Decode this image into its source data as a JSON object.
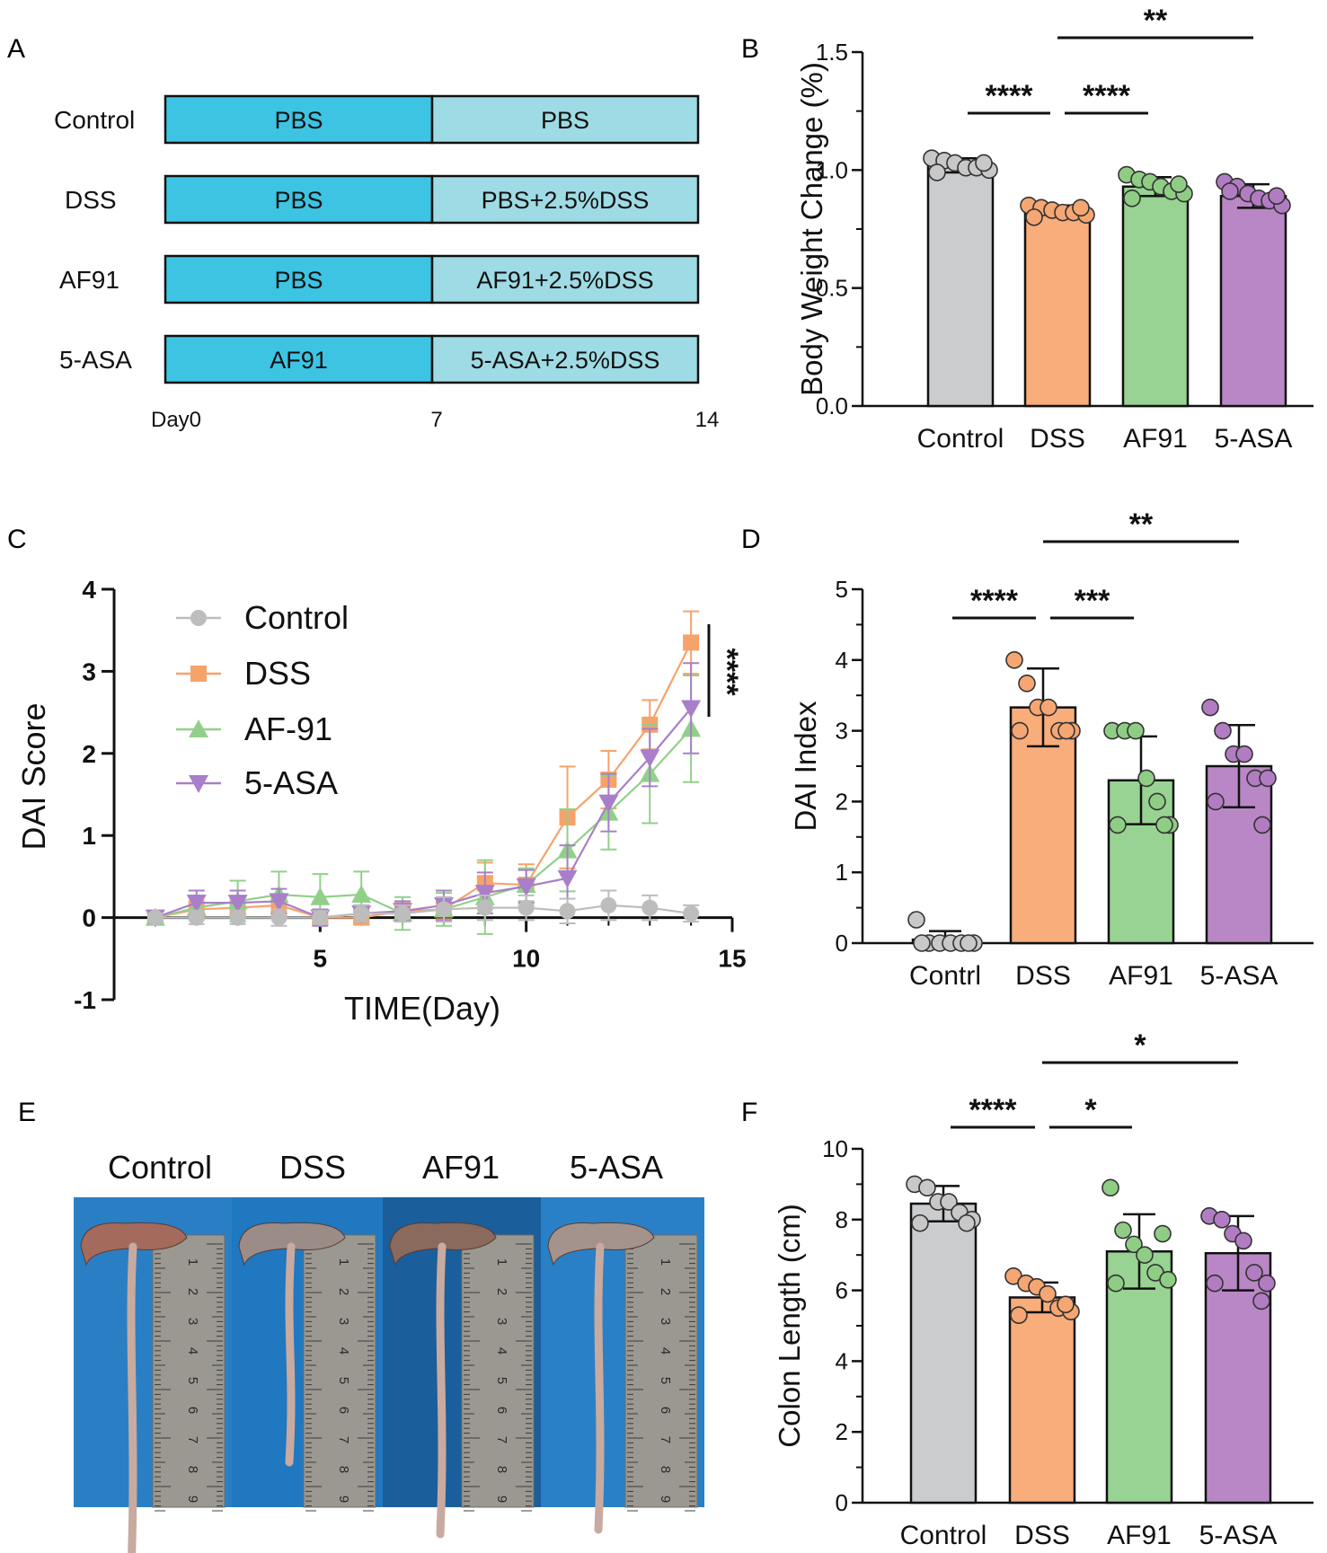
{
  "panel_letters": {
    "a": "A",
    "b": "B",
    "c": "C",
    "d": "D",
    "e": "E",
    "f": "F"
  },
  "colors": {
    "control": "#cbcccd",
    "dss": "#f8ad7b",
    "af91": "#98d393",
    "asa": "#b987c6",
    "dot_control": "#c8c8c8",
    "dot_dss": "#f6a672",
    "dot_af91": "#8fcd85",
    "dot_asa": "#b27cc3",
    "line_control": "#bdbdbd",
    "line_dss": "#f6a36b",
    "line_af91": "#92d08a",
    "line_asa": "#a97fc9",
    "dark_blue": "#3ec4e3",
    "light_blue": "#9edbe4",
    "photo_bg": "#1e6fb8"
  },
  "chart_data": [
    {
      "panel": "A",
      "type": "table",
      "rows": [
        {
          "label": "Control",
          "first": "PBS",
          "second": "PBS"
        },
        {
          "label": "DSS",
          "first": "PBS",
          "second": "PBS+2.5%DSS"
        },
        {
          "label": "AF91",
          "first": "PBS",
          "second": "AF91+2.5%DSS"
        },
        {
          "label": "5-ASA",
          "first": "AF91",
          "second": "5-ASA+2.5%DSS"
        }
      ],
      "timeline": [
        "Day0",
        "7",
        "14"
      ]
    },
    {
      "panel": "B",
      "type": "bar",
      "ylabel": "Body Weight Change (%)",
      "ylim": [
        0,
        1.5
      ],
      "yticks": [
        0.0,
        0.5,
        1.0,
        1.5
      ],
      "ytick_labels": [
        "0.0",
        "0.5",
        "1.0",
        "1.5"
      ],
      "categories": [
        "Control",
        "DSS",
        "AF91",
        "5-ASA"
      ],
      "values": [
        1.02,
        0.83,
        0.93,
        0.89
      ],
      "errors": [
        0.03,
        0.02,
        0.04,
        0.05
      ],
      "points": [
        [
          1.05,
          1.04,
          1.03,
          1.01,
          1.01,
          1.0,
          0.99,
          1.03
        ],
        [
          0.85,
          0.84,
          0.83,
          0.82,
          0.82,
          0.81,
          0.8,
          0.84
        ],
        [
          0.98,
          0.96,
          0.95,
          0.93,
          0.91,
          0.9,
          0.88,
          0.94
        ],
        [
          0.95,
          0.93,
          0.9,
          0.88,
          0.87,
          0.85,
          0.91,
          0.89
        ]
      ],
      "significance": [
        {
          "from": 0,
          "to": 1,
          "label": "****"
        },
        {
          "from": 1,
          "to": 2,
          "label": "****"
        },
        {
          "from": 1,
          "to": 3,
          "label": "**"
        }
      ]
    },
    {
      "panel": "C",
      "type": "line",
      "xlabel": "TIME(Day)",
      "ylabel": "DAI Score",
      "xlim": [
        0,
        15
      ],
      "ylim": [
        -1,
        4
      ],
      "xticks": [
        5,
        10,
        15
      ],
      "xtick_labels": [
        "5",
        "10",
        "15"
      ],
      "yticks": [
        -1,
        0,
        1,
        2,
        3,
        4
      ],
      "ytick_labels": [
        "-1",
        "0",
        "1",
        "2",
        "3",
        "4"
      ],
      "x": [
        1,
        2,
        3,
        4,
        5,
        6,
        7,
        8,
        9,
        10,
        11,
        12,
        13,
        14
      ],
      "series": [
        {
          "name": "Control",
          "marker": "circle",
          "values": [
            0,
            0,
            0,
            0,
            0,
            0.05,
            0.05,
            0.1,
            0.12,
            0.12,
            0.08,
            0.15,
            0.12,
            0.05
          ],
          "errors": [
            0.05,
            0.08,
            0.08,
            0.1,
            0.08,
            0.1,
            0.1,
            0.15,
            0.15,
            0.15,
            0.15,
            0.18,
            0.15,
            0.1
          ]
        },
        {
          "name": "DSS",
          "marker": "square",
          "values": [
            0,
            0.1,
            0.12,
            0.15,
            0,
            0,
            0.08,
            0.1,
            0.42,
            0.4,
            1.22,
            1.68,
            2.35,
            3.35
          ],
          "errors": [
            0.05,
            0.1,
            0.12,
            0.12,
            0.08,
            0.08,
            0.1,
            0.12,
            0.25,
            0.25,
            0.62,
            0.35,
            0.3,
            0.38
          ]
        },
        {
          "name": "AF-91",
          "marker": "triangle-up",
          "values": [
            0,
            0.12,
            0.2,
            0.28,
            0.25,
            0.28,
            0.05,
            0.1,
            0.25,
            0.4,
            0.82,
            1.28,
            1.75,
            2.3
          ],
          "errors": [
            0.05,
            0.15,
            0.25,
            0.28,
            0.28,
            0.28,
            0.2,
            0.2,
            0.45,
            0.2,
            0.5,
            0.45,
            0.6,
            0.65
          ]
        },
        {
          "name": "5-ASA",
          "marker": "triangle-down",
          "values": [
            0,
            0.18,
            0.18,
            0.2,
            0,
            0.05,
            0.08,
            0.15,
            0.3,
            0.38,
            0.48,
            1.4,
            1.95,
            2.55
          ],
          "errors": [
            0.05,
            0.15,
            0.15,
            0.15,
            0.1,
            0.1,
            0.12,
            0.18,
            0.25,
            0.2,
            0.4,
            0.35,
            0.35,
            0.55
          ]
        }
      ],
      "annotation": "****"
    },
    {
      "panel": "D",
      "type": "bar",
      "ylabel": "DAI Index",
      "ylim": [
        0,
        5
      ],
      "yticks": [
        0,
        1,
        2,
        3,
        4,
        5
      ],
      "ytick_labels": [
        "0",
        "1",
        "2",
        "3",
        "4",
        "5"
      ],
      "categories": [
        "Contrl",
        "DSS",
        "AF91",
        "5-ASA"
      ],
      "values": [
        0.05,
        3.33,
        2.3,
        2.5
      ],
      "errors": [
        0.12,
        0.55,
        0.62,
        0.58
      ],
      "points": [
        [
          0.33,
          0,
          0,
          0,
          0,
          0,
          0,
          0
        ],
        [
          4.0,
          3.67,
          3.33,
          3.33,
          3.0,
          3.0,
          3.0,
          3.0
        ],
        [
          3.0,
          3.0,
          3.0,
          2.33,
          2.0,
          1.67,
          1.67,
          1.67
        ],
        [
          3.33,
          3.0,
          2.67,
          2.67,
          2.33,
          2.33,
          2.0,
          1.67
        ]
      ],
      "significance": [
        {
          "from": 0,
          "to": 1,
          "label": "****"
        },
        {
          "from": 1,
          "to": 2,
          "label": "***"
        },
        {
          "from": 1,
          "to": 3,
          "label": "**"
        }
      ]
    },
    {
      "panel": "E",
      "type": "image",
      "labels": [
        "Control",
        "DSS",
        "AF91",
        "5-ASA"
      ],
      "ruler_numbers": [
        "1",
        "2",
        "3",
        "4",
        "5",
        "6",
        "7",
        "8",
        "9"
      ]
    },
    {
      "panel": "F",
      "type": "bar",
      "ylabel": "Colon Length (cm)",
      "ylim": [
        0,
        10
      ],
      "yticks": [
        0,
        2,
        4,
        6,
        8,
        10
      ],
      "ytick_labels": [
        "0",
        "2",
        "4",
        "6",
        "8",
        "10"
      ],
      "categories": [
        "Control",
        "DSS",
        "AF91",
        "5-ASA"
      ],
      "values": [
        8.45,
        5.8,
        7.1,
        7.05
      ],
      "errors": [
        0.5,
        0.42,
        1.05,
        1.05
      ],
      "points": [
        [
          9.0,
          8.9,
          8.5,
          8.5,
          8.2,
          8.0,
          7.9,
          7.9
        ],
        [
          6.4,
          6.2,
          6.1,
          5.9,
          5.5,
          5.4,
          5.3,
          5.6
        ],
        [
          8.9,
          7.7,
          7.3,
          7.0,
          6.5,
          6.3,
          6.2,
          7.6
        ],
        [
          8.1,
          8.0,
          7.6,
          7.4,
          6.5,
          6.2,
          6.2,
          5.7
        ]
      ],
      "significance": [
        {
          "from": 0,
          "to": 1,
          "label": "****"
        },
        {
          "from": 1,
          "to": 2,
          "label": "*"
        },
        {
          "from": 1,
          "to": 3,
          "label": "*"
        }
      ]
    }
  ]
}
